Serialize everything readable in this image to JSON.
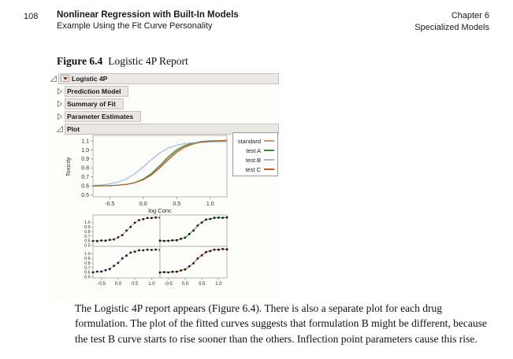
{
  "page": {
    "page_number": "108",
    "header": {
      "title": "Nonlinear Regression with Built-In Models",
      "subtitle": "Example Using the Fit Curve Personality",
      "chapter": "Chapter 6",
      "manual": "Specialized Models"
    },
    "figure": {
      "label": "Figure 6.4",
      "title": "Logistic 4P Report"
    },
    "body_text": "The Logistic 4P report appears (Figure 6.4). There is also a separate plot for each drug formulation. The plot of the fitted curves suggests that formulation B might be different, because the test B curve starts to rise sooner than the others. Inflection point parameters cause this rise."
  },
  "report": {
    "outline": [
      {
        "label": "Logistic 4P",
        "state": "expanded",
        "red_triangle": true
      },
      {
        "label": "Prediction Model",
        "state": "collapsed"
      },
      {
        "label": "Summary of Fit",
        "state": "collapsed"
      },
      {
        "label": "Parameter Estimates",
        "state": "collapsed"
      },
      {
        "label": "Plot",
        "state": "expanded"
      }
    ]
  },
  "chart_data": {
    "type": "line",
    "title": "",
    "xlabel": "log Conc",
    "ylabel": "Toxicity",
    "xlim": [
      -0.75,
      1.25
    ],
    "ylim": [
      0.48,
      1.16
    ],
    "grid": false,
    "legend_position": "top-right-outside",
    "x_ticks": [
      "-0.5",
      "0.0",
      "0.5",
      "1.0"
    ],
    "x_tick_values": [
      -0.5,
      0.0,
      0.5,
      1.0
    ],
    "y_ticks": [
      "1.1",
      "1.0",
      "0.9",
      "0.8",
      "0.7",
      "0.6",
      "0.5"
    ],
    "y_tick_values": [
      1.1,
      1.0,
      0.9,
      0.8,
      0.7,
      0.6,
      0.5
    ],
    "x": [
      -0.75,
      -0.625,
      -0.5,
      -0.375,
      -0.25,
      -0.125,
      0,
      0.125,
      0.25,
      0.375,
      0.5,
      0.625,
      0.75,
      0.875,
      1,
      1.125,
      1.25
    ],
    "series": [
      {
        "name": "standard",
        "color": "#cc9876",
        "values": [
          0.601,
          0.602,
          0.604,
          0.609,
          0.618,
          0.637,
          0.672,
          0.731,
          0.815,
          0.908,
          0.988,
          1.042,
          1.073,
          1.089,
          1.098,
          1.102,
          1.104
        ]
      },
      {
        "name": "test A",
        "color": "#3a8a3c",
        "values": [
          0.601,
          0.602,
          0.604,
          0.609,
          0.618,
          0.638,
          0.676,
          0.74,
          0.829,
          0.925,
          1.002,
          1.052,
          1.079,
          1.093,
          1.099,
          1.102,
          1.104
        ]
      },
      {
        "name": "test B",
        "color": "#9bbbe4",
        "values": [
          0.606,
          0.612,
          0.623,
          0.643,
          0.679,
          0.736,
          0.811,
          0.895,
          0.967,
          1.02,
          1.052,
          1.071,
          1.081,
          1.086,
          1.088,
          1.089,
          1.09
        ]
      },
      {
        "name": "test C",
        "color": "#bc5d1e",
        "values": [
          0.601,
          0.602,
          0.604,
          0.609,
          0.618,
          0.636,
          0.668,
          0.723,
          0.802,
          0.892,
          0.974,
          1.031,
          1.066,
          1.086,
          1.095,
          1.1,
          1.102
        ]
      }
    ],
    "small_multiples": {
      "description": "separate fitted plot per formulation with observed points as black dots",
      "layout": [
        [
          "standard",
          "test A"
        ],
        [
          "test B",
          "test C"
        ]
      ],
      "y_ticks": [
        "1.0",
        "0.9",
        "0.8",
        "0.7",
        "0.6",
        "0.5"
      ],
      "y_tick_values": [
        1.0,
        0.9,
        0.8,
        0.7,
        0.6,
        0.5
      ],
      "x_ticks": [
        "-0.5",
        "0.0",
        "0.5",
        "1.0"
      ],
      "x_tick_values": [
        -0.5,
        0.0,
        0.5,
        1.0
      ],
      "points": {
        "standard": [
          0.598,
          0.595,
          0.607,
          0.604,
          0.622,
          0.632,
          0.676,
          0.724,
          0.823,
          0.901,
          0.992,
          1.048,
          1.068,
          1.093,
          1.094,
          1.105,
          1.1
        ],
        "test A": [
          0.604,
          0.597,
          0.6,
          0.613,
          0.612,
          0.645,
          0.668,
          0.748,
          0.822,
          0.931,
          0.996,
          1.059,
          1.074,
          1.097,
          1.103,
          1.098,
          1.108
        ],
        "test B": [
          0.6,
          0.616,
          0.618,
          0.648,
          0.672,
          0.742,
          0.805,
          0.902,
          0.961,
          1.026,
          1.047,
          1.077,
          1.075,
          1.09,
          1.083,
          1.092,
          1.086
        ],
        "test C": [
          0.597,
          0.606,
          0.599,
          0.612,
          0.614,
          0.641,
          0.663,
          0.73,
          0.795,
          0.899,
          0.968,
          1.038,
          1.06,
          1.091,
          1.089,
          1.104,
          1.097
        ]
      }
    }
  }
}
